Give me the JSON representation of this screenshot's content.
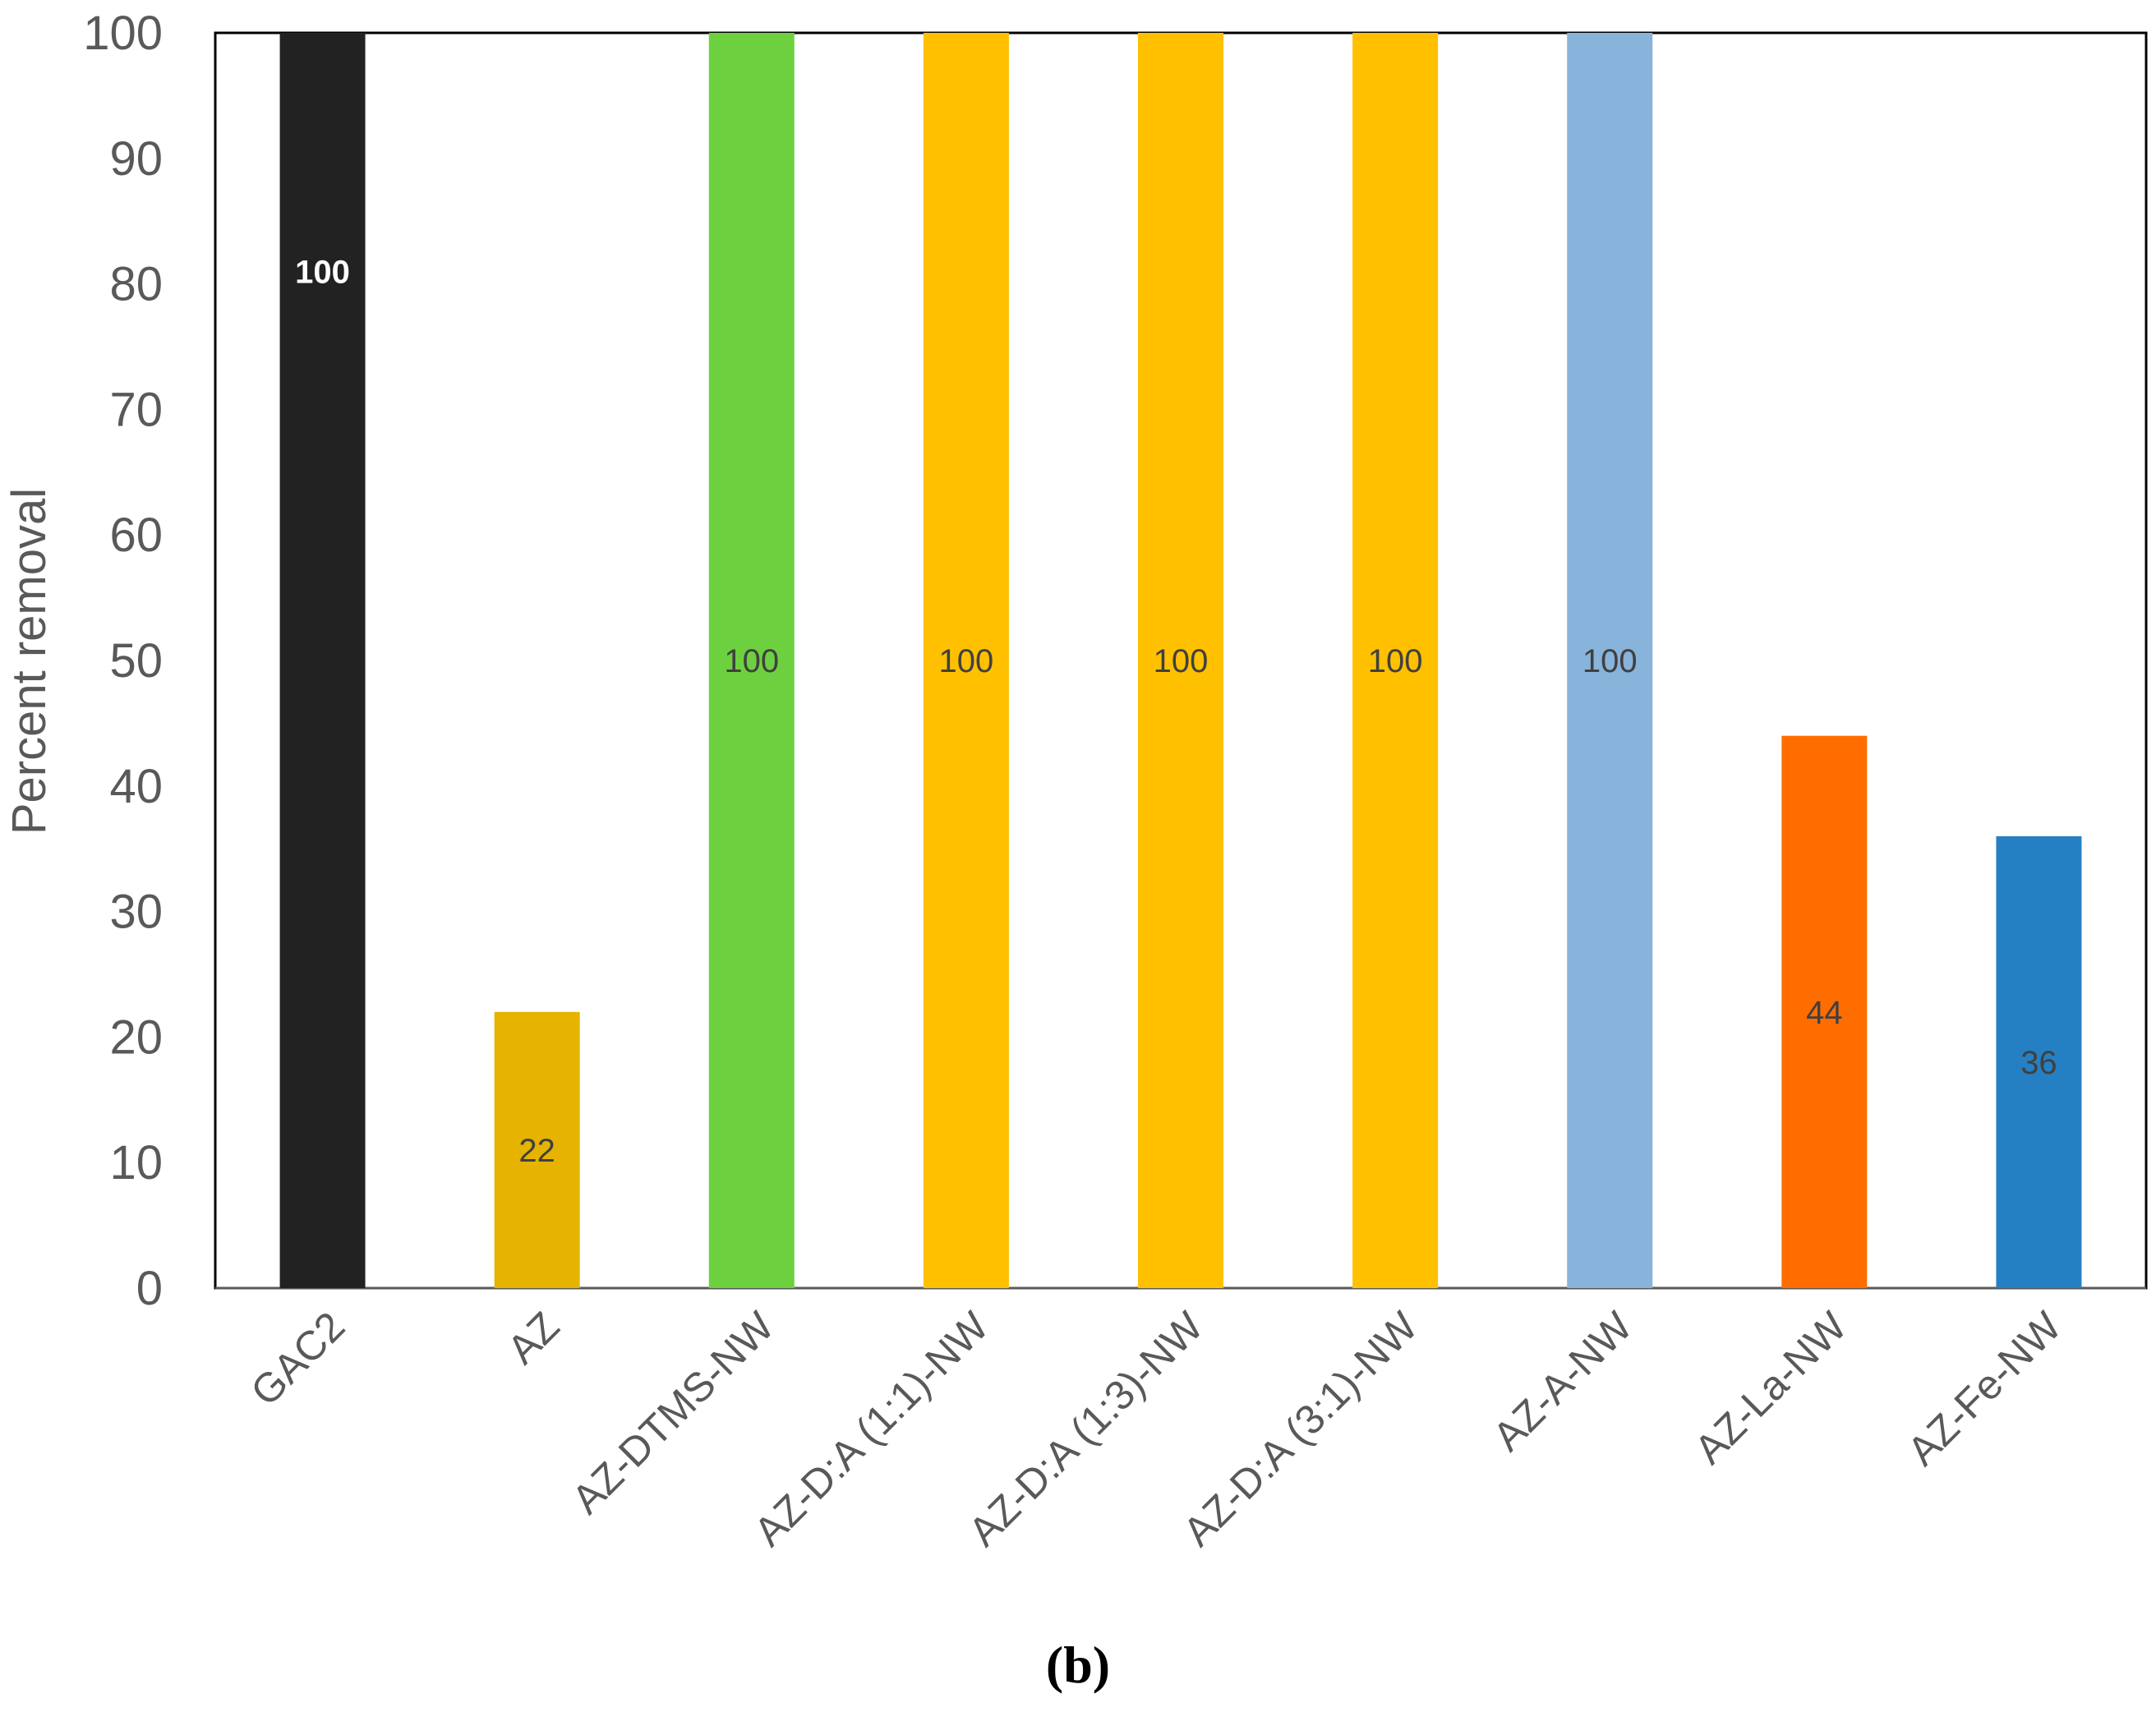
{
  "panel_label": "(b)",
  "chart_data": {
    "type": "bar",
    "title": "",
    "xlabel": "",
    "ylabel": "Percent removal",
    "ylim": [
      0,
      100
    ],
    "yticks": [
      0,
      10,
      20,
      30,
      40,
      50,
      60,
      70,
      80,
      90,
      100
    ],
    "grid": false,
    "legend": "none",
    "categories": [
      "GAC2",
      "AZ",
      "AZ-DTMS-NW",
      "AZ-D:A (1:1)-NW",
      "AZ-D:A (1:3)-NW",
      "AZ-D:A (3:1)-NW",
      "AZ-A-NW",
      "AZ-La-NW",
      "AZ-Fe-NW"
    ],
    "values": [
      100,
      22,
      100,
      100,
      100,
      100,
      100,
      44,
      36
    ],
    "data_labels": [
      "100",
      "22",
      "100",
      "100",
      "100",
      "100",
      "100",
      "44",
      "36"
    ],
    "colors": [
      "#222222",
      "#E5B300",
      "#6DD13F",
      "#FFC000",
      "#FFC000",
      "#FFC000",
      "#88B3DA",
      "#FF6D00",
      "#2480C3"
    ],
    "label_colors": [
      "#FFFFFF",
      "#404040",
      "#404040",
      "#404040",
      "#404040",
      "#404040",
      "#404040",
      "#404040",
      "#404040"
    ]
  }
}
